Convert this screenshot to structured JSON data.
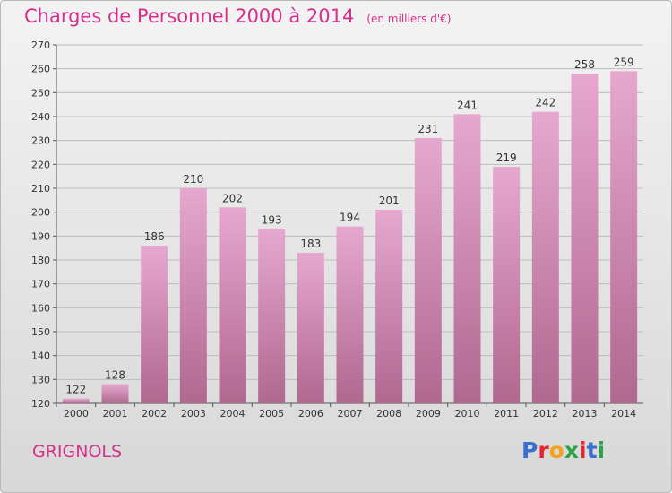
{
  "header": {
    "title": "Charges de Personnel 2000 à 2014",
    "unit": "(en milliers d'€)"
  },
  "footer": {
    "commune": "GRIGNOLS",
    "logo_letters": [
      "P",
      "r",
      "o",
      "x",
      "i",
      "t",
      "i"
    ]
  },
  "colors": {
    "title": "#d6308a",
    "bar_top": "#e6a8cf",
    "bar_bottom": "#b0688f",
    "logo": [
      "#3a6fd0",
      "#e3262f",
      "#f2a31b",
      "#2aa344",
      "#e3262f",
      "#3a6fd0",
      "#2aa344"
    ]
  },
  "chart_data": {
    "type": "bar",
    "categories": [
      "2000",
      "2001",
      "2002",
      "2003",
      "2004",
      "2005",
      "2006",
      "2007",
      "2008",
      "2009",
      "2010",
      "2011",
      "2012",
      "2013",
      "2014"
    ],
    "values": [
      122,
      128,
      186,
      210,
      202,
      193,
      183,
      194,
      201,
      231,
      241,
      219,
      242,
      258,
      259
    ],
    "ylim": [
      120,
      270
    ],
    "yticks": [
      120,
      130,
      140,
      150,
      160,
      170,
      180,
      190,
      200,
      210,
      220,
      230,
      240,
      250,
      260,
      270
    ],
    "grid": true,
    "xlabel": "",
    "ylabel": ""
  }
}
